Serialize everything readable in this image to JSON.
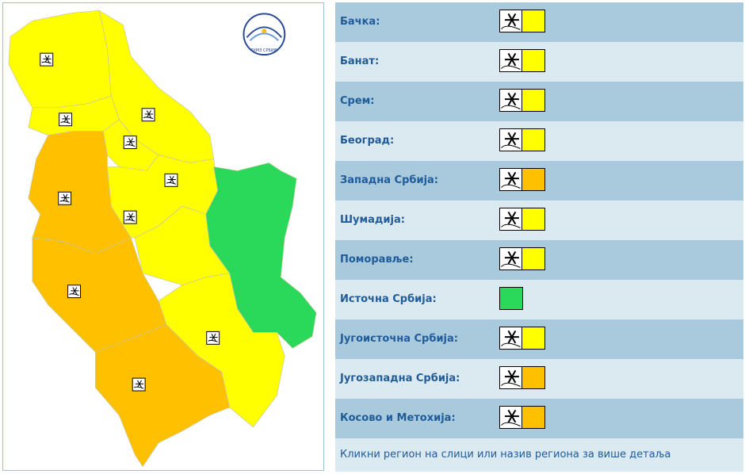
{
  "logo_text": "РХМЗ СРБИЈЕ",
  "regions": [
    {
      "name": "Бачка:",
      "warning_color": "#ffff00",
      "icon": "snow"
    },
    {
      "name": "Банат:",
      "warning_color": "#ffff00",
      "icon": "snow"
    },
    {
      "name": "Срем:",
      "warning_color": "#ffff00",
      "icon": "snow"
    },
    {
      "name": "Београд:",
      "warning_color": "#ffff00",
      "icon": "snow"
    },
    {
      "name": "Западна Србија:",
      "warning_color": "#ffc000",
      "icon": "snow"
    },
    {
      "name": "Шумадија:",
      "warning_color": "#ffff00",
      "icon": "snow"
    },
    {
      "name": "Поморавље:",
      "warning_color": "#ffff00",
      "icon": "snow"
    },
    {
      "name": "Источна Србија:",
      "warning_color": "#2bd95a"
    },
    {
      "name": "Југоисточна Србија:",
      "warning_color": "#ffff00",
      "icon": "snow"
    },
    {
      "name": "Југозападна Србија:",
      "warning_color": "#ffc000",
      "icon": "snow"
    },
    {
      "name": "Косово и Метохија:",
      "warning_color": "#ffc000",
      "icon": "snow"
    }
  ],
  "footer": "Кликни регион на слици или назив региона за више детаља"
}
